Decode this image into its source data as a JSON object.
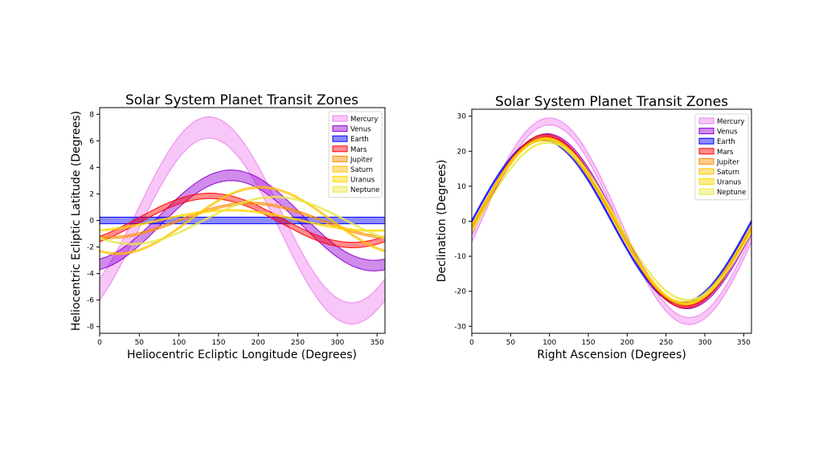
{
  "chart_data": [
    {
      "type": "area",
      "title": "Solar System Planet Transit Zones",
      "xlabel": "Heliocentric Ecliptic Longitude (Degrees)",
      "ylabel": "Heliocentric Ecliptic Latitude (Degrees)",
      "xlim": [
        0,
        360
      ],
      "ylim": [
        -8.5,
        8.5
      ],
      "xticks": [
        0,
        50,
        100,
        150,
        200,
        250,
        300,
        350
      ],
      "yticks": [
        -8,
        -6,
        -4,
        -2,
        0,
        2,
        4,
        6,
        8
      ],
      "grid": false,
      "legend_position": "top-right",
      "series": [
        {
          "name": "Mercury",
          "color": "#ee82ee",
          "amplitude": 7.0,
          "phase_deg": 48,
          "width": 1.6
        },
        {
          "name": "Venus",
          "color": "#9400d3",
          "amplitude": 3.4,
          "phase_deg": 76,
          "width": 0.8
        },
        {
          "name": "Earth",
          "color": "#0000ff",
          "amplitude": 0.0,
          "phase_deg": 0,
          "width": 0.5
        },
        {
          "name": "Mars",
          "color": "#ff0000",
          "amplitude": 1.85,
          "phase_deg": 49,
          "width": 0.4
        },
        {
          "name": "Jupiter",
          "color": "#ff8c00",
          "amplitude": 1.3,
          "phase_deg": 100,
          "width": 0.15
        },
        {
          "name": "Saturn",
          "color": "#ffc000",
          "amplitude": 2.5,
          "phase_deg": 113,
          "width": 0.12
        },
        {
          "name": "Uranus",
          "color": "#ffd700",
          "amplitude": 0.77,
          "phase_deg": 74,
          "width": 0.1
        },
        {
          "name": "Neptune",
          "color": "#e8e84a",
          "amplitude": 1.77,
          "phase_deg": 131,
          "width": 0.1
        }
      ]
    },
    {
      "type": "area",
      "title": "Solar System Planet Transit Zones",
      "xlabel": "Right Ascension (Degrees)",
      "ylabel": "Declination (Degrees)",
      "xlim": [
        0,
        360
      ],
      "ylim": [
        -32,
        32
      ],
      "xticks": [
        0,
        50,
        100,
        150,
        200,
        250,
        300,
        350
      ],
      "yticks": [
        -30,
        -20,
        -10,
        0,
        10,
        20,
        30
      ],
      "grid": false,
      "legend_position": "top-right",
      "series": [
        {
          "name": "Mercury",
          "color": "#ee82ee",
          "amplitude": 28.5,
          "phase_deg": 10,
          "width": 2.0
        },
        {
          "name": "Venus",
          "color": "#9400d3",
          "amplitude": 24.5,
          "phase_deg": 7,
          "width": 1.0
        },
        {
          "name": "Earth",
          "color": "#0000ff",
          "amplitude": 23.44,
          "phase_deg": 0,
          "width": 0.6
        },
        {
          "name": "Mars",
          "color": "#ff0000",
          "amplitude": 24.5,
          "phase_deg": 5,
          "width": 0.6
        },
        {
          "name": "Jupiter",
          "color": "#ff8c00",
          "amplitude": 23.8,
          "phase_deg": 4,
          "width": 0.4
        },
        {
          "name": "Saturn",
          "color": "#ffc000",
          "amplitude": 23.2,
          "phase_deg": 3,
          "width": 0.4
        },
        {
          "name": "Uranus",
          "color": "#ffd700",
          "amplitude": 23.6,
          "phase_deg": 6,
          "width": 0.4
        },
        {
          "name": "Neptune",
          "color": "#e8e84a",
          "amplitude": 22.5,
          "phase_deg": 8,
          "width": 0.4
        }
      ]
    }
  ]
}
